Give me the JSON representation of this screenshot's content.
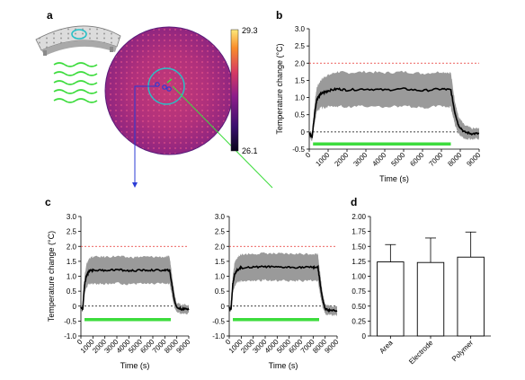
{
  "panels": {
    "a": {
      "letter": "a",
      "colorbar": {
        "max_label": "29.3",
        "min_label": "26.1",
        "max": 29.3,
        "min": 26.1
      }
    },
    "b": {
      "letter": "b"
    },
    "c": {
      "letter": "c"
    },
    "d": {
      "letter": "d"
    }
  },
  "chart_data": [
    {
      "id": "b",
      "type": "line",
      "xlabel": "Time (s)",
      "ylabel": "Temperature change (°C)",
      "xlim": [
        0,
        9000
      ],
      "ylim": [
        -0.5,
        3.0
      ],
      "xticks": [
        0,
        1000,
        2000,
        3000,
        4000,
        5000,
        6000,
        7000,
        8000,
        9000
      ],
      "yticks": [
        -0.5,
        0,
        0.5,
        1.0,
        1.5,
        2.0,
        2.5,
        3.0
      ],
      "ytick_labels": [
        "-0.5",
        "0",
        "0.5",
        "1.0",
        "1.5",
        "2.0",
        "2.5",
        "3.0"
      ],
      "ref_lines": [
        {
          "y": 2.0,
          "color": "#e8322c",
          "style": "dashed"
        },
        {
          "y": 0,
          "color": "#000000",
          "style": "dashed"
        }
      ],
      "stimulus_bar": {
        "x": [
          200,
          7500
        ],
        "y": -0.35,
        "color": "#3ddc3d"
      },
      "series": [
        {
          "kind": "mean",
          "x": [
            0,
            150,
            300,
            400,
            600,
            800,
            1000,
            1500,
            2000,
            3000,
            4000,
            5000,
            6000,
            7000,
            7500,
            7700,
            7900,
            8200,
            8600,
            9000
          ],
          "y": [
            -0.05,
            -0.15,
            0.6,
            0.95,
            1.1,
            1.15,
            1.2,
            1.25,
            1.22,
            1.25,
            1.22,
            1.25,
            1.2,
            1.25,
            1.22,
            0.6,
            0.2,
            0.0,
            -0.05,
            -0.05
          ],
          "band": [
            0.1,
            0.1,
            0.3,
            0.35,
            0.4,
            0.45,
            0.45,
            0.5,
            0.5,
            0.5,
            0.5,
            0.5,
            0.5,
            0.5,
            0.5,
            0.35,
            0.25,
            0.2,
            0.15,
            0.15
          ]
        }
      ]
    },
    {
      "id": "c1",
      "type": "line",
      "xlabel": "Time (s)",
      "ylabel": "Temperature change (°C)",
      "xlim": [
        0,
        9000
      ],
      "ylim": [
        -1.0,
        3.0
      ],
      "xticks": [
        0,
        1000,
        2000,
        3000,
        4000,
        5000,
        6000,
        7000,
        8000,
        9000
      ],
      "yticks": [
        -1.0,
        -0.5,
        0,
        0.5,
        1.0,
        1.5,
        2.0,
        2.5,
        3.0
      ],
      "ytick_labels": [
        "-1.0",
        "-0.5",
        "0",
        "0.5",
        "1.0",
        "1.5",
        "2.0",
        "2.5",
        "3.0"
      ],
      "ref_lines": [
        {
          "y": 2.0,
          "color": "#e8322c",
          "style": "dashed"
        },
        {
          "y": 0,
          "color": "#000000",
          "style": "dashed"
        }
      ],
      "stimulus_bar": {
        "x": [
          300,
          7500
        ],
        "y": -0.45,
        "color": "#3ddc3d"
      },
      "series": [
        {
          "kind": "mean",
          "x": [
            0,
            150,
            300,
            450,
            650,
            850,
            1000,
            2000,
            3000,
            4000,
            5000,
            6000,
            7000,
            7400,
            7600,
            7800,
            8000,
            8400,
            9000
          ],
          "y": [
            -0.05,
            -0.1,
            0.7,
            1.0,
            1.15,
            1.2,
            1.2,
            1.2,
            1.22,
            1.18,
            1.2,
            1.2,
            1.2,
            1.2,
            0.7,
            0.2,
            -0.05,
            -0.1,
            -0.1
          ],
          "band": [
            0.1,
            0.1,
            0.3,
            0.4,
            0.4,
            0.45,
            0.45,
            0.45,
            0.45,
            0.45,
            0.45,
            0.45,
            0.45,
            0.45,
            0.35,
            0.25,
            0.15,
            0.15,
            0.15
          ]
        }
      ]
    },
    {
      "id": "c2",
      "type": "line",
      "xlabel": "Time (s)",
      "ylabel": "",
      "xlim": [
        0,
        9000
      ],
      "ylim": [
        -1.0,
        3.0
      ],
      "xticks": [
        0,
        1000,
        2000,
        3000,
        4000,
        5000,
        6000,
        7000,
        8000,
        9000
      ],
      "yticks": [
        -1.0,
        -0.5,
        0,
        0.5,
        1.0,
        1.5,
        2.0,
        2.5,
        3.0
      ],
      "ytick_labels": [
        "-1.0",
        "-0.5",
        "0",
        "0.5",
        "1.0",
        "1.5",
        "2.0",
        "2.5",
        "3.0"
      ],
      "ref_lines": [
        {
          "y": 2.0,
          "color": "#e8322c",
          "style": "dashed"
        },
        {
          "y": 0,
          "color": "#000000",
          "style": "dashed"
        }
      ],
      "stimulus_bar": {
        "x": [
          300,
          7500
        ],
        "y": -0.45,
        "color": "#3ddc3d"
      },
      "series": [
        {
          "kind": "mean",
          "x": [
            0,
            150,
            300,
            450,
            650,
            850,
            1000,
            2000,
            3000,
            4000,
            5000,
            6000,
            7000,
            7400,
            7600,
            7800,
            8000,
            8400,
            9000
          ],
          "y": [
            -0.05,
            -0.1,
            0.75,
            1.05,
            1.2,
            1.25,
            1.28,
            1.3,
            1.32,
            1.3,
            1.3,
            1.3,
            1.3,
            1.3,
            0.7,
            0.2,
            -0.1,
            -0.15,
            -0.15
          ],
          "band": [
            0.1,
            0.1,
            0.3,
            0.4,
            0.4,
            0.45,
            0.45,
            0.45,
            0.45,
            0.45,
            0.45,
            0.45,
            0.45,
            0.45,
            0.35,
            0.25,
            0.15,
            0.15,
            0.15
          ]
        }
      ]
    },
    {
      "id": "d",
      "type": "bar",
      "categories": [
        "Area",
        "Electrode",
        "Polymer"
      ],
      "values": [
        1.24,
        1.23,
        1.32
      ],
      "errors": [
        0.29,
        0.41,
        0.42
      ],
      "ylim": [
        0,
        2.0
      ],
      "yticks": [
        0,
        0.25,
        0.5,
        0.75,
        1.0,
        1.25,
        1.5,
        1.75,
        2.0
      ],
      "ytick_labels": [
        "0",
        "0.25",
        "0.50",
        "0.75",
        "1.00",
        "1.25",
        "1.50",
        "1.75",
        "2.00"
      ]
    }
  ]
}
